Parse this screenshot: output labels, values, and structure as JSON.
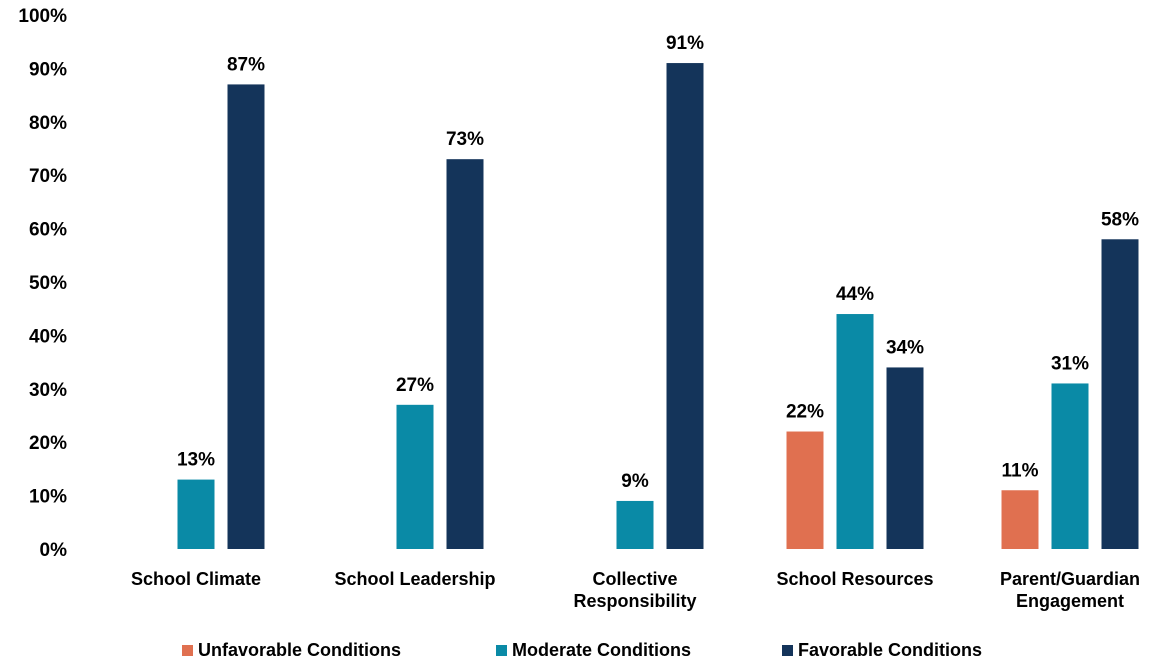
{
  "chart_data": {
    "type": "bar",
    "categories": [
      [
        "School Climate"
      ],
      [
        "School Leadership"
      ],
      [
        "Collective",
        "Responsibility"
      ],
      [
        "School Resources"
      ],
      [
        "Parent/Guardian",
        "Engagement"
      ]
    ],
    "series": [
      {
        "name": "Unfavorable Conditions",
        "color": "#e07050",
        "values": [
          null,
          null,
          null,
          22,
          11
        ]
      },
      {
        "name": "Moderate Conditions",
        "color": "#0a8aa6",
        "values": [
          13,
          27,
          9,
          44,
          31
        ]
      },
      {
        "name": "Favorable Conditions",
        "color": "#14345a",
        "values": [
          87,
          73,
          91,
          34,
          58
        ]
      }
    ],
    "ylim": [
      0,
      100
    ],
    "yticks": [
      0,
      10,
      20,
      30,
      40,
      50,
      60,
      70,
      80,
      90,
      100
    ],
    "ytick_suffix": "%",
    "value_suffix": "%",
    "legend_position": "bottom",
    "grid": false
  }
}
